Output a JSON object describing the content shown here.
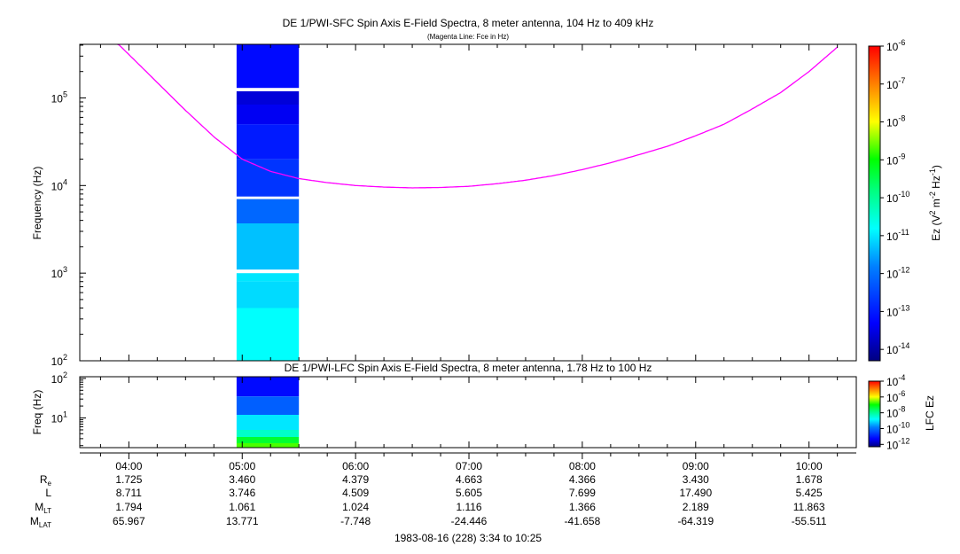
{
  "chart_data": [
    {
      "type": "heatmap",
      "title": "DE 1/PWI-SFC  Spin Axis E-Field Spectra, 8 meter antenna, 104 Hz to 409 kHz",
      "subtitle": "(Magenta Line: Fce in Hz)",
      "ylabel": "Frequency (Hz)",
      "yscale": "log",
      "ylim": [
        100,
        409000
      ],
      "yticks": [
        {
          "value": 100,
          "base": "10",
          "exp": "2"
        },
        {
          "value": 1000,
          "base": "10",
          "exp": "3"
        },
        {
          "value": 10000,
          "base": "10",
          "exp": "4"
        },
        {
          "value": 100000,
          "base": "10",
          "exp": "5"
        }
      ],
      "xlim_hours": [
        3.567,
        10.417
      ],
      "data_interval_hours": [
        4.95,
        5.5
      ],
      "bands": [
        {
          "f_low": 130000,
          "f_high": 409000,
          "log_ez": -13.2
        },
        {
          "f_low": 84000,
          "f_high": 119000,
          "log_ez": -13.6
        },
        {
          "f_low": 50000,
          "f_high": 84000,
          "log_ez": -13.4
        },
        {
          "f_low": 20000,
          "f_high": 50000,
          "log_ez": -13.0
        },
        {
          "f_low": 7500,
          "f_high": 20000,
          "log_ez": -12.7
        },
        {
          "f_low": 3700,
          "f_high": 7000,
          "log_ez": -12.1
        },
        {
          "f_low": 1100,
          "f_high": 3700,
          "log_ez": -11.3
        },
        {
          "f_low": 800,
          "f_high": 1000,
          "log_ez": -11.0
        },
        {
          "f_low": 400,
          "f_high": 800,
          "log_ez": -11.1
        },
        {
          "f_low": 100,
          "f_high": 400,
          "log_ez": -10.8
        }
      ],
      "fce_series": {
        "name": "Fce in Hz",
        "color": "#ff00ff",
        "x_hours": [
          3.9,
          4.25,
          4.5,
          4.75,
          5.0,
          5.25,
          5.5,
          5.75,
          6.0,
          6.25,
          6.5,
          6.75,
          7.0,
          7.25,
          7.5,
          7.75,
          8.0,
          8.25,
          8.5,
          8.75,
          9.0,
          9.25,
          9.5,
          9.75,
          10.0,
          10.25
        ],
        "fce_hz": [
          420000,
          150000,
          72000,
          36000,
          20000,
          14500,
          12000,
          10800,
          10000,
          9600,
          9400,
          9500,
          9800,
          10500,
          11500,
          13000,
          15200,
          18200,
          22500,
          28000,
          37000,
          50000,
          75000,
          115000,
          200000,
          380000
        ]
      },
      "colorbar": {
        "label_parts": {
          "a": "Ez (V",
          "b": "2",
          "c": " m",
          "d": "-2",
          "e": " Hz",
          "f": "-1",
          "g": ")"
        },
        "range_log": [
          -14.3,
          -6
        ],
        "ticks": [
          {
            "log": -6,
            "base": "10",
            "exp": "-6"
          },
          {
            "log": -7,
            "base": "10",
            "exp": "-7"
          },
          {
            "log": -8,
            "base": "10",
            "exp": "-8"
          },
          {
            "log": -9,
            "base": "10",
            "exp": "-9"
          },
          {
            "log": -10,
            "base": "10",
            "exp": "-10"
          },
          {
            "log": -11,
            "base": "10",
            "exp": "-11"
          },
          {
            "log": -12,
            "base": "10",
            "exp": "-12"
          },
          {
            "log": -13,
            "base": "10",
            "exp": "-13"
          },
          {
            "log": -14,
            "base": "10",
            "exp": "-14"
          }
        ]
      }
    },
    {
      "type": "heatmap",
      "title": "DE 1/PWI-LFC  Spin Axis E-Field Spectra, 8 meter antenna, 1.78 Hz to 100 Hz",
      "ylabel": "Freq (Hz)",
      "yscale": "log",
      "ylim": [
        1.78,
        110
      ],
      "yticks": [
        {
          "value": 10,
          "base": "10",
          "exp": "1"
        },
        {
          "value": 100,
          "base": "10",
          "exp": "2"
        }
      ],
      "xlim_hours": [
        3.567,
        10.417
      ],
      "data_interval_hours": [
        4.95,
        5.5
      ],
      "bands": [
        {
          "f_low": 35,
          "f_high": 110,
          "log_ez": -11.2
        },
        {
          "f_low": 12,
          "f_high": 35,
          "log_ez": -10.2
        },
        {
          "f_low": 5,
          "f_high": 12,
          "log_ez": -9.0
        },
        {
          "f_low": 3.3,
          "f_high": 5,
          "log_ez": -8.4
        },
        {
          "f_low": 2.3,
          "f_high": 3.3,
          "log_ez": -7.3
        },
        {
          "f_low": 1.78,
          "f_high": 2.3,
          "log_ez": -6.7
        }
      ],
      "colorbar": {
        "label": "LFC Ez",
        "range_log": [
          -12.3,
          -4
        ],
        "ticks": [
          {
            "log": -4,
            "base": "10",
            "exp": "-4"
          },
          {
            "log": -6,
            "base": "10",
            "exp": "-6"
          },
          {
            "log": -8,
            "base": "10",
            "exp": "-8"
          },
          {
            "log": -10,
            "base": "10",
            "exp": "-10"
          },
          {
            "log": -12,
            "base": "10",
            "exp": "-12"
          }
        ]
      }
    }
  ],
  "time_axis": {
    "ticks": [
      {
        "hours": 4,
        "label": "04:00"
      },
      {
        "hours": 5,
        "label": "05:00"
      },
      {
        "hours": 6,
        "label": "06:00"
      },
      {
        "hours": 7,
        "label": "07:00"
      },
      {
        "hours": 8,
        "label": "08:00"
      },
      {
        "hours": 9,
        "label": "09:00"
      },
      {
        "hours": 10,
        "label": "10:00"
      }
    ],
    "minor_step_hours": 0.25
  },
  "ephemeris": {
    "rows": [
      {
        "label": "R",
        "sub": "e",
        "values": [
          "1.725",
          "3.460",
          "4.379",
          "4.663",
          "4.366",
          "3.430",
          "1.678"
        ]
      },
      {
        "label": "L",
        "sub": "",
        "values": [
          "8.711",
          "3.746",
          "4.509",
          "5.605",
          "7.699",
          "17.490",
          "5.425"
        ]
      },
      {
        "label": "M",
        "sub": "LT",
        "values": [
          "1.794",
          "1.061",
          "1.024",
          "1.116",
          "1.366",
          "2.189",
          "11.863"
        ]
      },
      {
        "label": "M",
        "sub": "LAT",
        "values": [
          "65.967",
          "13.771",
          "-7.748",
          "-24.446",
          "-41.658",
          "-64.319",
          "-55.511"
        ]
      }
    ]
  },
  "footer": {
    "date_range": "1983-08-16 (228) 3:34 to 10:25"
  }
}
